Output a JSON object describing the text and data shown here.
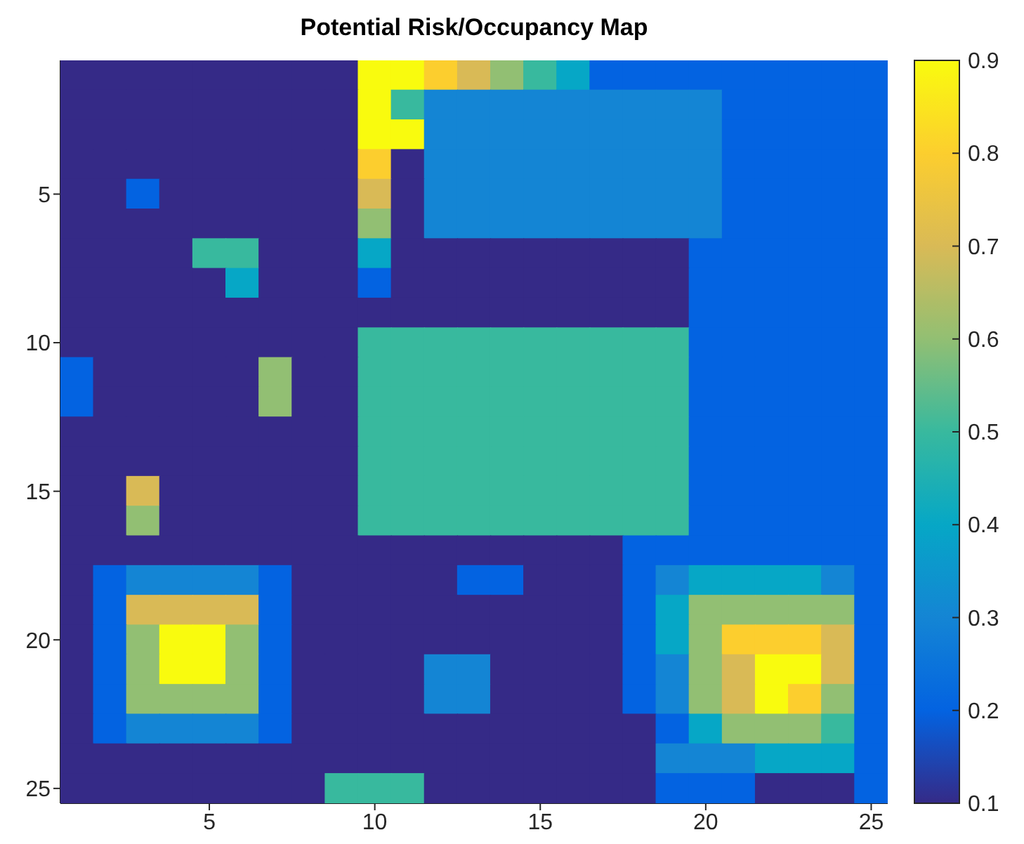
{
  "chart_data": {
    "type": "heatmap",
    "title": "Potential Risk/Occupancy Map",
    "categories": [
      null,
      null,
      null,
      null,
      "5",
      null,
      null,
      null,
      null,
      "10",
      null,
      null,
      null,
      null,
      "15",
      null,
      null,
      null,
      null,
      "20",
      null,
      null,
      null,
      null,
      "25"
    ],
    "y_categories": [
      null,
      null,
      null,
      null,
      "5",
      null,
      null,
      null,
      null,
      "10",
      null,
      null,
      null,
      null,
      "15",
      null,
      null,
      null,
      null,
      "20",
      null,
      null,
      null,
      null,
      "25"
    ],
    "cells": [
      [
        0.1,
        0.1,
        0.1,
        0.1,
        0.1,
        0.1,
        0.1,
        0.1,
        0.1,
        0.9,
        0.9,
        0.8,
        0.7,
        0.6,
        0.5,
        0.4,
        0.2,
        0.2,
        0.2,
        0.2,
        0.2,
        0.2,
        0.2,
        0.2,
        0.2
      ],
      [
        0.1,
        0.1,
        0.1,
        0.1,
        0.1,
        0.1,
        0.1,
        0.1,
        0.1,
        0.9,
        0.5,
        0.3,
        0.3,
        0.3,
        0.3,
        0.3,
        0.3,
        0.3,
        0.3,
        0.3,
        0.2,
        0.2,
        0.2,
        0.2,
        0.2
      ],
      [
        0.1,
        0.1,
        0.1,
        0.1,
        0.1,
        0.1,
        0.1,
        0.1,
        0.1,
        0.9,
        0.9,
        0.3,
        0.3,
        0.3,
        0.3,
        0.3,
        0.3,
        0.3,
        0.3,
        0.3,
        0.2,
        0.2,
        0.2,
        0.2,
        0.2
      ],
      [
        0.1,
        0.1,
        0.1,
        0.1,
        0.1,
        0.1,
        0.1,
        0.1,
        0.1,
        0.8,
        0.1,
        0.3,
        0.3,
        0.3,
        0.3,
        0.3,
        0.3,
        0.3,
        0.3,
        0.3,
        0.2,
        0.2,
        0.2,
        0.2,
        0.2
      ],
      [
        0.1,
        0.1,
        0.2,
        0.1,
        0.1,
        0.1,
        0.1,
        0.1,
        0.1,
        0.7,
        0.1,
        0.3,
        0.3,
        0.3,
        0.3,
        0.3,
        0.3,
        0.3,
        0.3,
        0.3,
        0.2,
        0.2,
        0.2,
        0.2,
        0.2
      ],
      [
        0.1,
        0.1,
        0.1,
        0.1,
        0.1,
        0.1,
        0.1,
        0.1,
        0.1,
        0.6,
        0.1,
        0.3,
        0.3,
        0.3,
        0.3,
        0.3,
        0.3,
        0.3,
        0.3,
        0.3,
        0.2,
        0.2,
        0.2,
        0.2,
        0.2
      ],
      [
        0.1,
        0.1,
        0.1,
        0.1,
        0.5,
        0.5,
        0.1,
        0.1,
        0.1,
        0.4,
        0.1,
        0.1,
        0.1,
        0.1,
        0.1,
        0.1,
        0.1,
        0.1,
        0.1,
        0.2,
        0.2,
        0.2,
        0.2,
        0.2,
        0.2
      ],
      [
        0.1,
        0.1,
        0.1,
        0.1,
        0.1,
        0.4,
        0.1,
        0.1,
        0.1,
        0.2,
        0.1,
        0.1,
        0.1,
        0.1,
        0.1,
        0.1,
        0.1,
        0.1,
        0.1,
        0.2,
        0.2,
        0.2,
        0.2,
        0.2,
        0.2
      ],
      [
        0.1,
        0.1,
        0.1,
        0.1,
        0.1,
        0.1,
        0.1,
        0.1,
        0.1,
        0.1,
        0.1,
        0.1,
        0.1,
        0.1,
        0.1,
        0.1,
        0.1,
        0.1,
        0.1,
        0.2,
        0.2,
        0.2,
        0.2,
        0.2,
        0.2
      ],
      [
        0.1,
        0.1,
        0.1,
        0.1,
        0.1,
        0.1,
        0.1,
        0.1,
        0.1,
        0.5,
        0.5,
        0.5,
        0.5,
        0.5,
        0.5,
        0.5,
        0.5,
        0.5,
        0.5,
        0.2,
        0.2,
        0.2,
        0.2,
        0.2,
        0.2
      ],
      [
        0.2,
        0.1,
        0.1,
        0.1,
        0.1,
        0.1,
        0.6,
        0.1,
        0.1,
        0.5,
        0.5,
        0.5,
        0.5,
        0.5,
        0.5,
        0.5,
        0.5,
        0.5,
        0.5,
        0.2,
        0.2,
        0.2,
        0.2,
        0.2,
        0.2
      ],
      [
        0.2,
        0.1,
        0.1,
        0.1,
        0.1,
        0.1,
        0.6,
        0.1,
        0.1,
        0.5,
        0.5,
        0.5,
        0.5,
        0.5,
        0.5,
        0.5,
        0.5,
        0.5,
        0.5,
        0.2,
        0.2,
        0.2,
        0.2,
        0.2,
        0.2
      ],
      [
        0.1,
        0.1,
        0.1,
        0.1,
        0.1,
        0.1,
        0.1,
        0.1,
        0.1,
        0.5,
        0.5,
        0.5,
        0.5,
        0.5,
        0.5,
        0.5,
        0.5,
        0.5,
        0.5,
        0.2,
        0.2,
        0.2,
        0.2,
        0.2,
        0.2
      ],
      [
        0.1,
        0.1,
        0.1,
        0.1,
        0.1,
        0.1,
        0.1,
        0.1,
        0.1,
        0.5,
        0.5,
        0.5,
        0.5,
        0.5,
        0.5,
        0.5,
        0.5,
        0.5,
        0.5,
        0.2,
        0.2,
        0.2,
        0.2,
        0.2,
        0.2
      ],
      [
        0.1,
        0.1,
        0.7,
        0.1,
        0.1,
        0.1,
        0.1,
        0.1,
        0.1,
        0.5,
        0.5,
        0.5,
        0.5,
        0.5,
        0.5,
        0.5,
        0.5,
        0.5,
        0.5,
        0.2,
        0.2,
        0.2,
        0.2,
        0.2,
        0.2
      ],
      [
        0.1,
        0.1,
        0.6,
        0.1,
        0.1,
        0.1,
        0.1,
        0.1,
        0.1,
        0.5,
        0.5,
        0.5,
        0.5,
        0.5,
        0.5,
        0.5,
        0.5,
        0.5,
        0.5,
        0.2,
        0.2,
        0.2,
        0.2,
        0.2,
        0.2
      ],
      [
        0.1,
        0.1,
        0.1,
        0.1,
        0.1,
        0.1,
        0.1,
        0.1,
        0.1,
        0.1,
        0.1,
        0.1,
        0.1,
        0.1,
        0.1,
        0.1,
        0.1,
        0.2,
        0.2,
        0.2,
        0.2,
        0.2,
        0.2,
        0.2,
        0.2
      ],
      [
        0.1,
        0.2,
        0.3,
        0.3,
        0.3,
        0.3,
        0.2,
        0.1,
        0.1,
        0.1,
        0.1,
        0.1,
        0.2,
        0.2,
        0.1,
        0.1,
        0.1,
        0.2,
        0.3,
        0.4,
        0.4,
        0.4,
        0.4,
        0.3,
        0.2
      ],
      [
        0.1,
        0.2,
        0.7,
        0.7,
        0.7,
        0.7,
        0.2,
        0.1,
        0.1,
        0.1,
        0.1,
        0.1,
        0.1,
        0.1,
        0.1,
        0.1,
        0.1,
        0.2,
        0.4,
        0.6,
        0.6,
        0.6,
        0.6,
        0.6,
        0.2
      ],
      [
        0.1,
        0.2,
        0.6,
        0.9,
        0.9,
        0.6,
        0.2,
        0.1,
        0.1,
        0.1,
        0.1,
        0.1,
        0.1,
        0.1,
        0.1,
        0.1,
        0.1,
        0.2,
        0.4,
        0.6,
        0.8,
        0.8,
        0.8,
        0.7,
        0.2
      ],
      [
        0.1,
        0.2,
        0.6,
        0.9,
        0.9,
        0.6,
        0.2,
        0.1,
        0.1,
        0.1,
        0.1,
        0.3,
        0.3,
        0.1,
        0.1,
        0.1,
        0.1,
        0.2,
        0.3,
        0.6,
        0.7,
        0.9,
        0.9,
        0.7,
        0.2
      ],
      [
        0.1,
        0.2,
        0.6,
        0.6,
        0.6,
        0.6,
        0.2,
        0.1,
        0.1,
        0.1,
        0.1,
        0.3,
        0.3,
        0.1,
        0.1,
        0.1,
        0.1,
        0.2,
        0.3,
        0.6,
        0.7,
        0.9,
        0.8,
        0.6,
        0.2
      ],
      [
        0.1,
        0.2,
        0.3,
        0.3,
        0.3,
        0.3,
        0.2,
        0.1,
        0.1,
        0.1,
        0.1,
        0.1,
        0.1,
        0.1,
        0.1,
        0.1,
        0.1,
        0.1,
        0.2,
        0.4,
        0.6,
        0.6,
        0.6,
        0.5,
        0.2
      ],
      [
        0.1,
        0.1,
        0.1,
        0.1,
        0.1,
        0.1,
        0.1,
        0.1,
        0.1,
        0.1,
        0.1,
        0.1,
        0.1,
        0.1,
        0.1,
        0.1,
        0.1,
        0.1,
        0.3,
        0.3,
        0.3,
        0.4,
        0.4,
        0.4,
        0.2
      ],
      [
        0.1,
        0.1,
        0.1,
        0.1,
        0.1,
        0.1,
        0.1,
        0.1,
        0.5,
        0.5,
        0.5,
        0.1,
        0.1,
        0.1,
        0.1,
        0.1,
        0.1,
        0.1,
        0.2,
        0.2,
        0.2,
        0.1,
        0.1,
        0.1,
        0.2
      ]
    ],
    "clim": [
      0.1,
      0.9
    ],
    "cticks": [
      0.1,
      0.2,
      0.3,
      0.4,
      0.5,
      0.6,
      0.7,
      0.8,
      0.9
    ]
  }
}
